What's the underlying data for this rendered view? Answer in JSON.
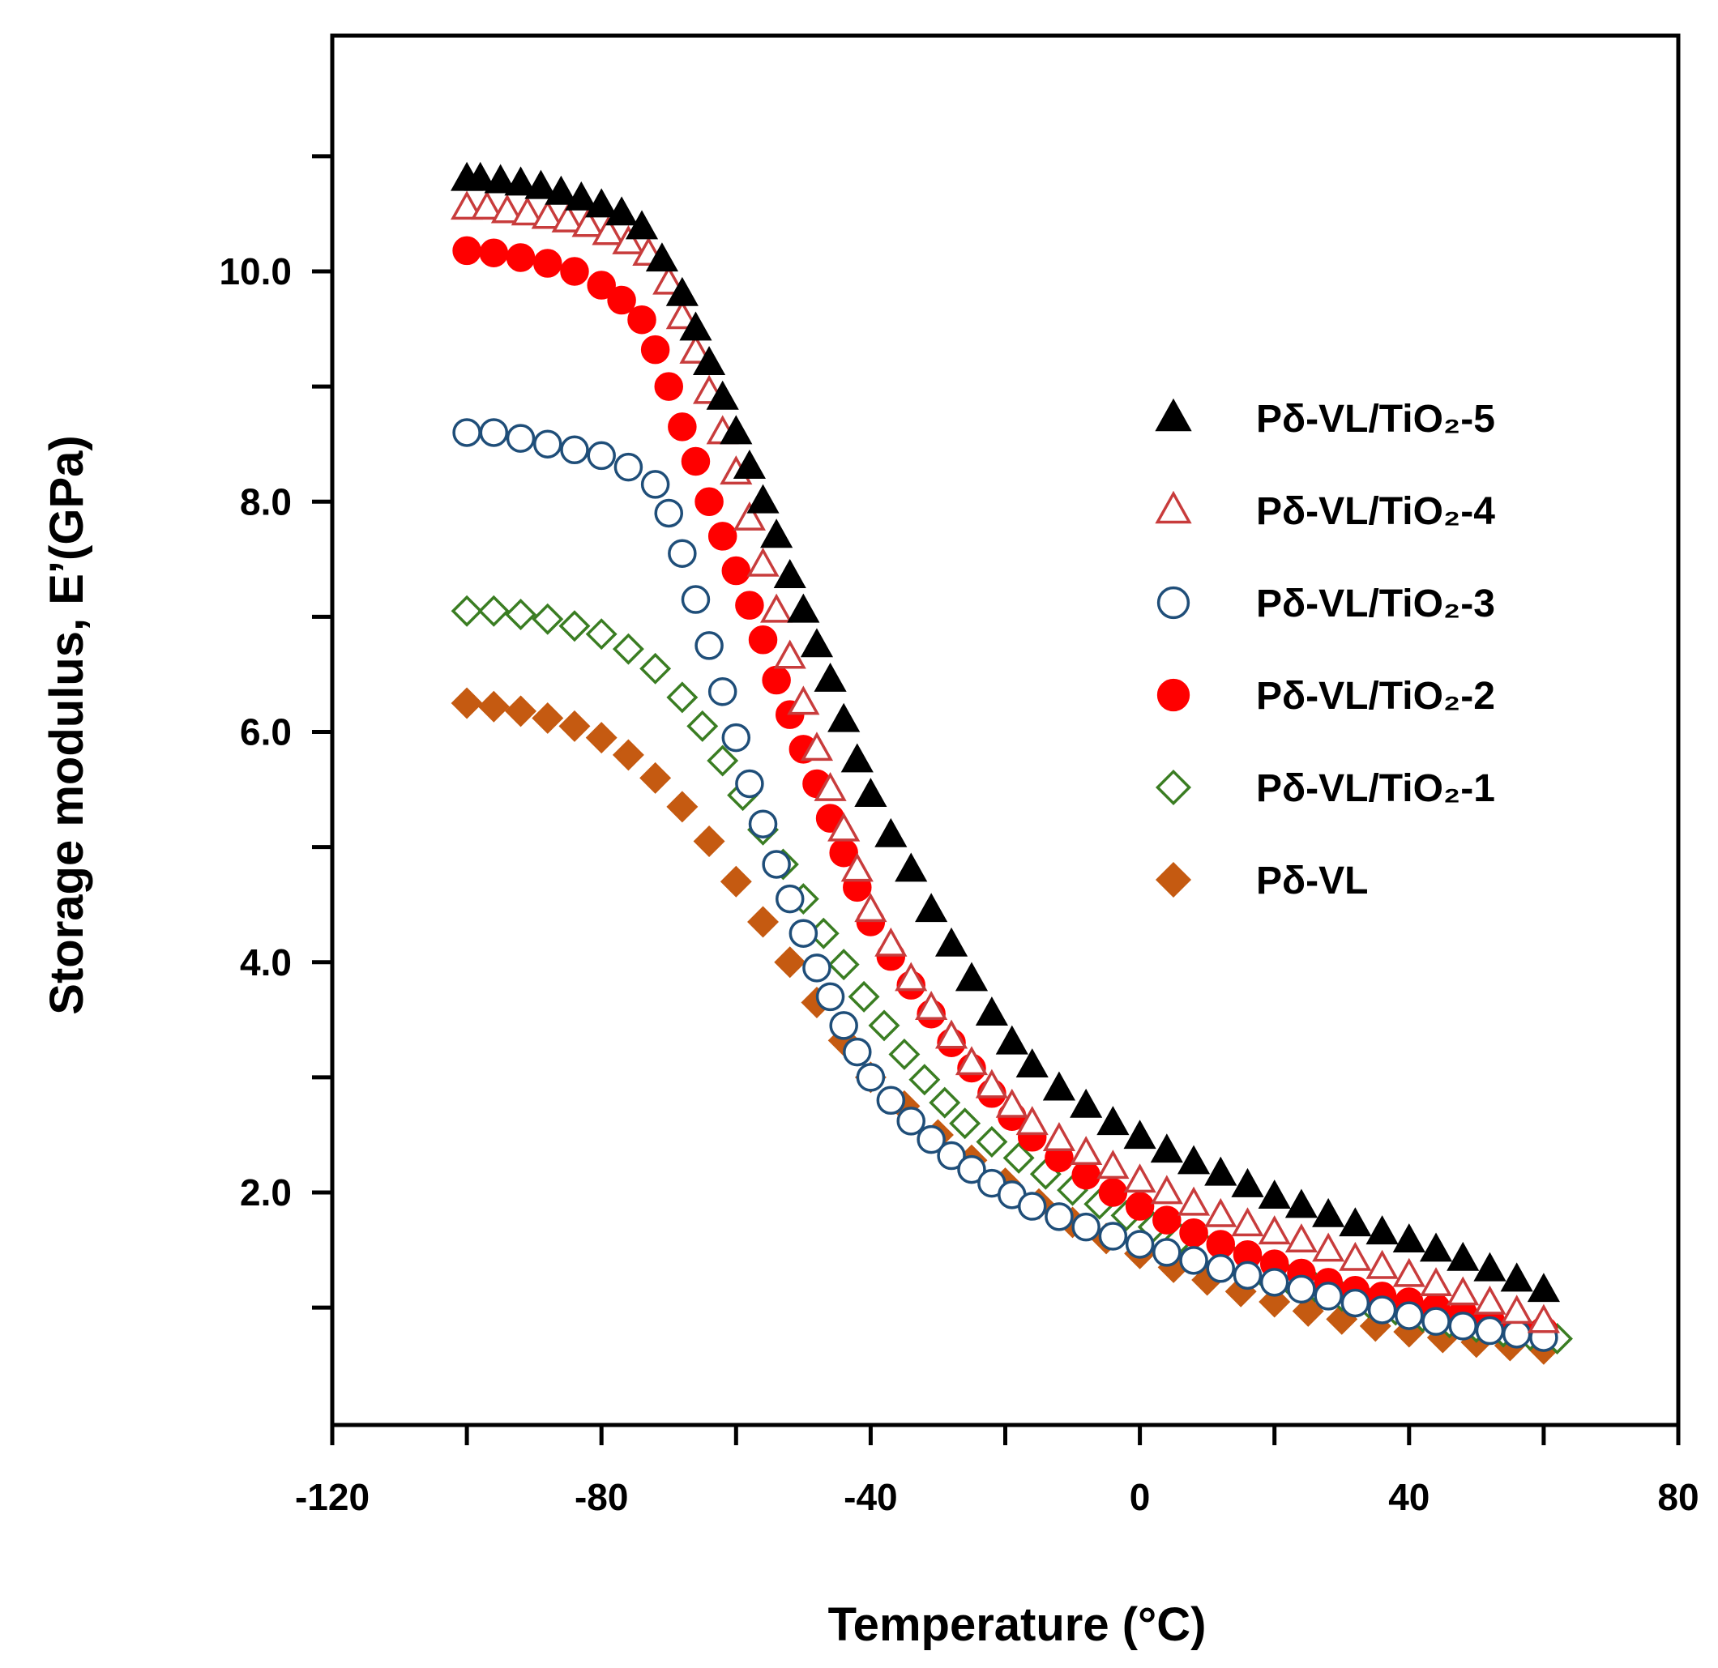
{
  "chart_data": {
    "type": "scatter",
    "title": "",
    "xlabel": "Temperature (°C)",
    "ylabel": "Storage modulus, E’(GPa)",
    "xlim": [
      -120,
      80
    ],
    "ylim": [
      0,
      12
    ],
    "x_ticks": [
      -120,
      -80,
      -40,
      0,
      40,
      80
    ],
    "x_tick_labels": [
      "-120",
      "-80",
      "-40",
      "0",
      "40",
      "80"
    ],
    "y_ticks": [
      2,
      4,
      6,
      8,
      10
    ],
    "y_tick_labels": [
      "2.0",
      "4.0",
      "6.0",
      "8.0",
      "10.0"
    ],
    "y_minor_ticks": [
      1,
      3,
      5,
      7,
      9,
      11
    ],
    "legend_position": "right",
    "grid": false,
    "series": [
      {
        "name": "Pδ-VL/TiO₂-5",
        "marker": "triangle-filled",
        "color": "#000000",
        "x": [
          -100,
          -98,
          -95,
          -92,
          -89,
          -86,
          -83,
          -80,
          -77,
          -74,
          -71,
          -68,
          -66,
          -64,
          -62,
          -60,
          -58,
          -56,
          -54,
          -52,
          -50,
          -48,
          -46,
          -44,
          -42,
          -40,
          -37,
          -34,
          -31,
          -28,
          -25,
          -22,
          -19,
          -16,
          -12,
          -8,
          -4,
          0,
          4,
          8,
          12,
          16,
          20,
          24,
          28,
          32,
          36,
          40,
          44,
          48,
          52,
          56,
          60
        ],
        "y": [
          10.8,
          10.8,
          10.78,
          10.76,
          10.73,
          10.68,
          10.63,
          10.57,
          10.5,
          10.38,
          10.1,
          9.8,
          9.5,
          9.2,
          8.9,
          8.6,
          8.3,
          8.0,
          7.7,
          7.35,
          7.05,
          6.75,
          6.45,
          6.1,
          5.75,
          5.45,
          5.1,
          4.8,
          4.45,
          4.15,
          3.85,
          3.55,
          3.3,
          3.1,
          2.9,
          2.75,
          2.6,
          2.48,
          2.36,
          2.26,
          2.16,
          2.06,
          1.96,
          1.88,
          1.8,
          1.72,
          1.65,
          1.58,
          1.5,
          1.42,
          1.33,
          1.24,
          1.15
        ]
      },
      {
        "name": "Pδ-VL/TiO₂-4",
        "marker": "triangle-open",
        "color": "#c83c3c",
        "x": [
          -100,
          -97,
          -94,
          -91,
          -88,
          -85,
          -82,
          -79,
          -76,
          -73,
          -70,
          -68,
          -66,
          -64,
          -62,
          -60,
          -58,
          -56,
          -54,
          -52,
          -50,
          -48,
          -46,
          -44,
          -42,
          -40,
          -37,
          -34,
          -31,
          -28,
          -25,
          -22,
          -19,
          -16,
          -12,
          -8,
          -4,
          0,
          4,
          8,
          12,
          16,
          20,
          24,
          28,
          32,
          36,
          40,
          44,
          48,
          52,
          56,
          60
        ],
        "y": [
          10.55,
          10.55,
          10.52,
          10.5,
          10.47,
          10.44,
          10.4,
          10.33,
          10.25,
          10.15,
          9.9,
          9.6,
          9.3,
          8.95,
          8.6,
          8.25,
          7.85,
          7.45,
          7.05,
          6.65,
          6.25,
          5.85,
          5.5,
          5.15,
          4.8,
          4.45,
          4.15,
          3.85,
          3.6,
          3.35,
          3.12,
          2.92,
          2.75,
          2.6,
          2.46,
          2.34,
          2.22,
          2.1,
          2.0,
          1.9,
          1.8,
          1.72,
          1.65,
          1.58,
          1.5,
          1.42,
          1.35,
          1.28,
          1.2,
          1.12,
          1.04,
          0.96,
          0.88
        ]
      },
      {
        "name": "Pδ-VL/TiO₂-3",
        "marker": "circle-open",
        "color": "#1f4e79",
        "x": [
          -100,
          -96,
          -92,
          -88,
          -84,
          -80,
          -76,
          -72,
          -70,
          -68,
          -66,
          -64,
          -62,
          -60,
          -58,
          -56,
          -54,
          -52,
          -50,
          -48,
          -46,
          -44,
          -42,
          -40,
          -37,
          -34,
          -31,
          -28,
          -25,
          -22,
          -19,
          -16,
          -12,
          -8,
          -4,
          0,
          4,
          8,
          12,
          16,
          20,
          24,
          28,
          32,
          36,
          40,
          44,
          48,
          52,
          56,
          60
        ],
        "y": [
          8.6,
          8.6,
          8.55,
          8.5,
          8.45,
          8.4,
          8.3,
          8.15,
          7.9,
          7.55,
          7.15,
          6.75,
          6.35,
          5.95,
          5.55,
          5.2,
          4.85,
          4.55,
          4.25,
          3.95,
          3.7,
          3.45,
          3.22,
          3.0,
          2.8,
          2.62,
          2.46,
          2.32,
          2.2,
          2.08,
          1.98,
          1.88,
          1.79,
          1.7,
          1.62,
          1.55,
          1.48,
          1.41,
          1.34,
          1.28,
          1.22,
          1.16,
          1.1,
          1.04,
          0.98,
          0.93,
          0.88,
          0.84,
          0.8,
          0.77,
          0.74
        ]
      },
      {
        "name": "Pδ-VL/TiO₂-2",
        "marker": "circle-filled",
        "color": "#ff0000",
        "x": [
          -100,
          -96,
          -92,
          -88,
          -84,
          -80,
          -77,
          -74,
          -72,
          -70,
          -68,
          -66,
          -64,
          -62,
          -60,
          -58,
          -56,
          -54,
          -52,
          -50,
          -48,
          -46,
          -44,
          -42,
          -40,
          -37,
          -34,
          -31,
          -28,
          -25,
          -22,
          -19,
          -16,
          -12,
          -8,
          -4,
          0,
          4,
          8,
          12,
          16,
          20,
          24,
          28,
          32,
          36,
          40,
          44,
          48,
          52,
          56,
          60
        ],
        "y": [
          10.18,
          10.16,
          10.12,
          10.07,
          10.0,
          9.88,
          9.75,
          9.58,
          9.32,
          9.0,
          8.65,
          8.35,
          8.0,
          7.7,
          7.4,
          7.1,
          6.8,
          6.45,
          6.15,
          5.85,
          5.55,
          5.25,
          4.95,
          4.65,
          4.35,
          4.05,
          3.8,
          3.55,
          3.3,
          3.08,
          2.86,
          2.66,
          2.48,
          2.3,
          2.15,
          2.0,
          1.88,
          1.76,
          1.65,
          1.55,
          1.46,
          1.38,
          1.3,
          1.22,
          1.15,
          1.1,
          1.05,
          1.0,
          0.95,
          0.9,
          0.85,
          0.8
        ]
      },
      {
        "name": "Pδ-VL/TiO₂-1",
        "marker": "diamond-open",
        "color": "#3a7d22",
        "x": [
          -100,
          -96,
          -92,
          -88,
          -84,
          -80,
          -76,
          -72,
          -68,
          -65,
          -62,
          -59,
          -56,
          -53,
          -50,
          -47,
          -44,
          -41,
          -38,
          -35,
          -32,
          -29,
          -26,
          -22,
          -18,
          -14,
          -10,
          -6,
          -2,
          2,
          6,
          10,
          14,
          18,
          22,
          26,
          30,
          34,
          38,
          42,
          46,
          50,
          54,
          58,
          62
        ],
        "y": [
          7.05,
          7.05,
          7.02,
          6.98,
          6.92,
          6.85,
          6.72,
          6.55,
          6.3,
          6.05,
          5.75,
          5.45,
          5.15,
          4.85,
          4.55,
          4.25,
          3.98,
          3.7,
          3.45,
          3.2,
          2.98,
          2.78,
          2.6,
          2.44,
          2.3,
          2.16,
          2.02,
          1.9,
          1.8,
          1.7,
          1.6,
          1.5,
          1.4,
          1.32,
          1.25,
          1.18,
          1.1,
          1.04,
          0.98,
          0.92,
          0.87,
          0.83,
          0.79,
          0.76,
          0.73
        ]
      },
      {
        "name": "Pδ-VL",
        "marker": "diamond-filled",
        "color": "#c55a11",
        "x": [
          -100,
          -96,
          -92,
          -88,
          -84,
          -80,
          -76,
          -72,
          -68,
          -64,
          -60,
          -56,
          -52,
          -48,
          -44,
          -40,
          -35,
          -30,
          -25,
          -20,
          -15,
          -10,
          -5,
          0,
          5,
          10,
          15,
          20,
          25,
          30,
          35,
          40,
          45,
          50,
          55,
          60
        ],
        "y": [
          6.25,
          6.22,
          6.18,
          6.12,
          6.05,
          5.95,
          5.8,
          5.6,
          5.35,
          5.05,
          4.7,
          4.35,
          4.0,
          3.65,
          3.32,
          3.0,
          2.75,
          2.5,
          2.28,
          2.08,
          1.9,
          1.74,
          1.6,
          1.47,
          1.35,
          1.24,
          1.14,
          1.05,
          0.97,
          0.9,
          0.84,
          0.79,
          0.74,
          0.7,
          0.67,
          0.64
        ]
      }
    ]
  }
}
